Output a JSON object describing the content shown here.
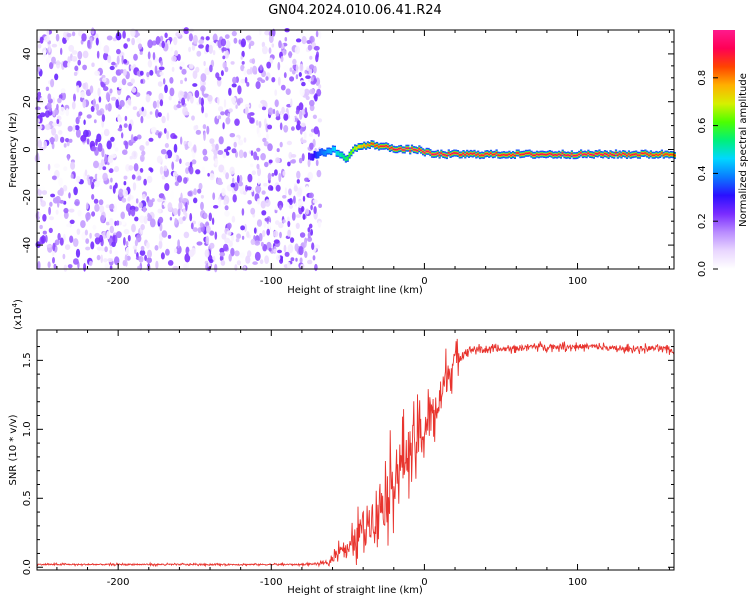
{
  "title": "GN04.2024.010.06.41.R24",
  "colors": {
    "snr_line": "#e8342e",
    "colormap": [
      "#ffffff",
      "#e9d6ff",
      "#b98cff",
      "#7a2cff",
      "#2a10ff",
      "#0a7bff",
      "#00d8ff",
      "#00f07a",
      "#4cff00",
      "#d6f000",
      "#ffb000",
      "#ff4400",
      "#ff0055",
      "#ff1a8c"
    ]
  },
  "chart_data": [
    {
      "type": "heatmap",
      "name": "spectrogram",
      "xlabel": "Height of straight line (km)",
      "ylabel": "Frequency (Hz)",
      "xlim": [
        -253,
        163
      ],
      "ylim": [
        -50,
        50
      ],
      "xticks": [
        -200,
        -100,
        0,
        100
      ],
      "xtick_labels": [
        "-200",
        "-100",
        "0",
        "100"
      ],
      "yticks": [
        -40,
        -20,
        0,
        20,
        40
      ],
      "ytick_labels": [
        "-40",
        "-20",
        "0",
        "20",
        "40"
      ],
      "regions": [
        {
          "x_range": [
            -253,
            -68
          ],
          "content": "broadband noise",
          "amplitude_range": [
            0.0,
            0.25
          ]
        },
        {
          "x_range": [
            -68,
            163
          ],
          "content": "narrow signal line near 0 Hz",
          "amplitude_range": [
            0.3,
            1.0
          ]
        }
      ],
      "signal_trace": {
        "x": [
          -76,
          -70,
          -60,
          -52,
          -45,
          -35,
          -25,
          -15,
          -5,
          5,
          20,
          40,
          60,
          80,
          100,
          120,
          140,
          163
        ],
        "freq": [
          -3,
          -2,
          0,
          -4,
          1,
          2,
          1,
          0,
          0,
          -2,
          -2,
          -2,
          -2,
          -2,
          -2,
          -2,
          -2,
          -2
        ],
        "amplitude": [
          0.25,
          0.35,
          0.45,
          0.55,
          0.7,
          0.85,
          0.9,
          0.95,
          0.95,
          0.95,
          0.92,
          0.9,
          0.9,
          0.92,
          0.95,
          0.92,
          0.9,
          0.85
        ]
      },
      "grid": false
    },
    {
      "type": "colorbar",
      "label": "Normalized spectral amplitude",
      "range": [
        0.0,
        1.0
      ],
      "ticks": [
        0.0,
        0.2,
        0.4,
        0.6,
        0.8
      ],
      "tick_labels": [
        "0.0",
        "0.2",
        "0.4",
        "0.6",
        "0.8"
      ]
    },
    {
      "type": "line",
      "name": "snr",
      "xlabel": "Height of straight line (km)",
      "ylabel": "SNR (10 * v/v)",
      "exponent_label": "(x10",
      "exponent_power": "4",
      "exponent_close": ")",
      "xlim": [
        -253,
        163
      ],
      "ylim": [
        -0.02,
        1.72
      ],
      "y_unit_multiplier": 10000,
      "xticks": [
        -200,
        -100,
        0,
        100
      ],
      "xtick_labels": [
        "-200",
        "-100",
        "0",
        "100"
      ],
      "yticks": [
        0.0,
        0.5,
        1.0,
        1.5
      ],
      "ytick_labels": [
        "0.0",
        "0.5",
        "1.0",
        "1.5"
      ],
      "series": [
        {
          "x": [
            -253,
            -230,
            -200,
            -170,
            -140,
            -110,
            -80,
            -62,
            -55,
            -50,
            -45,
            -40,
            -35,
            -30,
            -25,
            -20,
            -15,
            -10,
            -5,
            0,
            5,
            10,
            15,
            20,
            25,
            30,
            35,
            50,
            70,
            90,
            110,
            130,
            150,
            163
          ],
          "y": [
            0.02,
            0.02,
            0.02,
            0.02,
            0.02,
            0.02,
            0.02,
            0.03,
            0.15,
            0.12,
            0.2,
            0.3,
            0.35,
            0.45,
            0.5,
            0.65,
            0.75,
            0.85,
            0.9,
            1.0,
            1.1,
            1.2,
            1.4,
            1.5,
            1.55,
            1.58,
            1.58,
            1.58,
            1.6,
            1.6,
            1.6,
            1.58,
            1.59,
            1.57
          ],
          "noise": [
            0.01,
            0.01,
            0.01,
            0.01,
            0.01,
            0.01,
            0.01,
            0.02,
            0.12,
            0.12,
            0.2,
            0.25,
            0.3,
            0.4,
            0.45,
            0.4,
            0.4,
            0.35,
            0.35,
            0.35,
            0.3,
            0.3,
            0.25,
            0.18,
            0.08,
            0.05,
            0.04,
            0.04,
            0.04,
            0.04,
            0.04,
            0.04,
            0.04,
            0.04
          ]
        }
      ],
      "grid": false
    }
  ]
}
